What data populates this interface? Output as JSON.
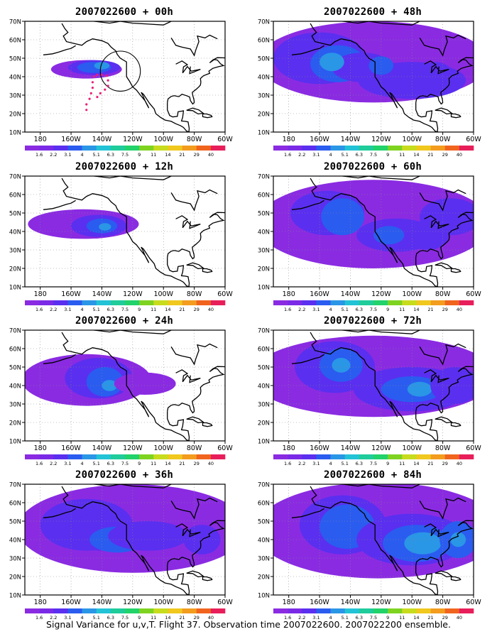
{
  "footer": "Signal Variance for u,v,T. Flight 37. Observation time 2007022600. 2007022200 ensemble.",
  "axes": {
    "lat_labels": [
      "10N",
      "20N",
      "30N",
      "40N",
      "50N",
      "60N",
      "70N"
    ],
    "lon_labels": [
      "180",
      "160W",
      "140W",
      "120W",
      "100W",
      "80W",
      "60W"
    ]
  },
  "colorbar": {
    "labels": [
      "1.6",
      "2.2",
      "3.1",
      "4",
      "5.1",
      "6.3",
      "7.5",
      "9",
      "11",
      "14",
      "21",
      "29",
      "40"
    ],
    "colors": [
      "#8a2be2",
      "#7a2ae6",
      "#5a2ff0",
      "#2a5cf0",
      "#2a96e6",
      "#22c3d6",
      "#1fcc9a",
      "#22d26a",
      "#7ed321",
      "#c8dc1e",
      "#f0c81e",
      "#f39c1e",
      "#f0641e",
      "#e81e5a"
    ]
  },
  "panels": [
    {
      "title": "2007022600 + 00h"
    },
    {
      "title": "2007022600 + 48h"
    },
    {
      "title": "2007022600 + 12h"
    },
    {
      "title": "2007022600 + 60h"
    },
    {
      "title": "2007022600 + 24h"
    },
    {
      "title": "2007022600 + 72h"
    },
    {
      "title": "2007022600 + 36h"
    },
    {
      "title": "2007022600 + 84h"
    }
  ]
}
